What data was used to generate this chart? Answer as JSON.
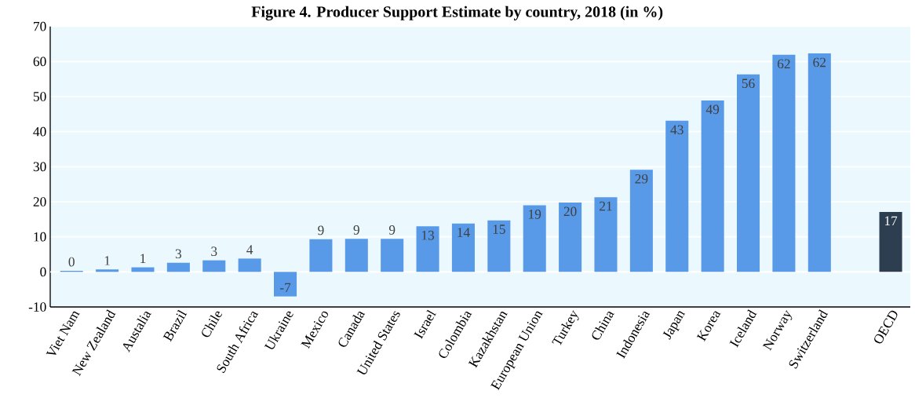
{
  "chart_data": {
    "type": "bar",
    "title": "Figure 4. Producer Support Estimate by country, 2018 (in %)",
    "categories": [
      "Viet Nam",
      "New Zealand",
      "Austalia",
      "Brazil",
      "Chile",
      "South Africa",
      "Ukraine",
      "Mexico",
      "Canada",
      "United States",
      "Israel",
      "Colombia",
      "Kazakhstan",
      "European Union",
      "Turkey",
      "China",
      "Indonesia",
      "Japan",
      "Korea",
      "Iceland",
      "Norway",
      "Switzerland",
      null,
      "OECD"
    ],
    "values": [
      0.3,
      0.7,
      1.3,
      2.6,
      3.3,
      3.8,
      -7,
      9.3,
      9.4,
      9.4,
      13,
      13.8,
      14.7,
      19,
      19.8,
      21.3,
      29.1,
      43.1,
      48.9,
      56.3,
      61.9,
      62.3,
      null,
      17.1
    ],
    "value_labels": [
      "0",
      "1",
      "1",
      "3",
      "3",
      "4",
      "-7",
      "9",
      "9",
      "9",
      "13",
      "14",
      "15",
      "19",
      "20",
      "21",
      "29",
      "43",
      "49",
      "56",
      "62",
      "62",
      null,
      "17"
    ],
    "colors": [
      "#5899e8",
      "#5899e8",
      "#5899e8",
      "#5899e8",
      "#5899e8",
      "#5899e8",
      "#5899e8",
      "#5899e8",
      "#5899e8",
      "#5899e8",
      "#5899e8",
      "#5899e8",
      "#5899e8",
      "#5899e8",
      "#5899e8",
      "#5899e8",
      "#5899e8",
      "#5899e8",
      "#5899e8",
      "#5899e8",
      "#5899e8",
      "#5899e8",
      null,
      "#2d3e50"
    ],
    "ylim": [
      -10,
      70
    ],
    "yticks": [
      -10,
      0,
      10,
      20,
      30,
      40,
      50,
      60,
      70
    ],
    "grid": "y"
  }
}
